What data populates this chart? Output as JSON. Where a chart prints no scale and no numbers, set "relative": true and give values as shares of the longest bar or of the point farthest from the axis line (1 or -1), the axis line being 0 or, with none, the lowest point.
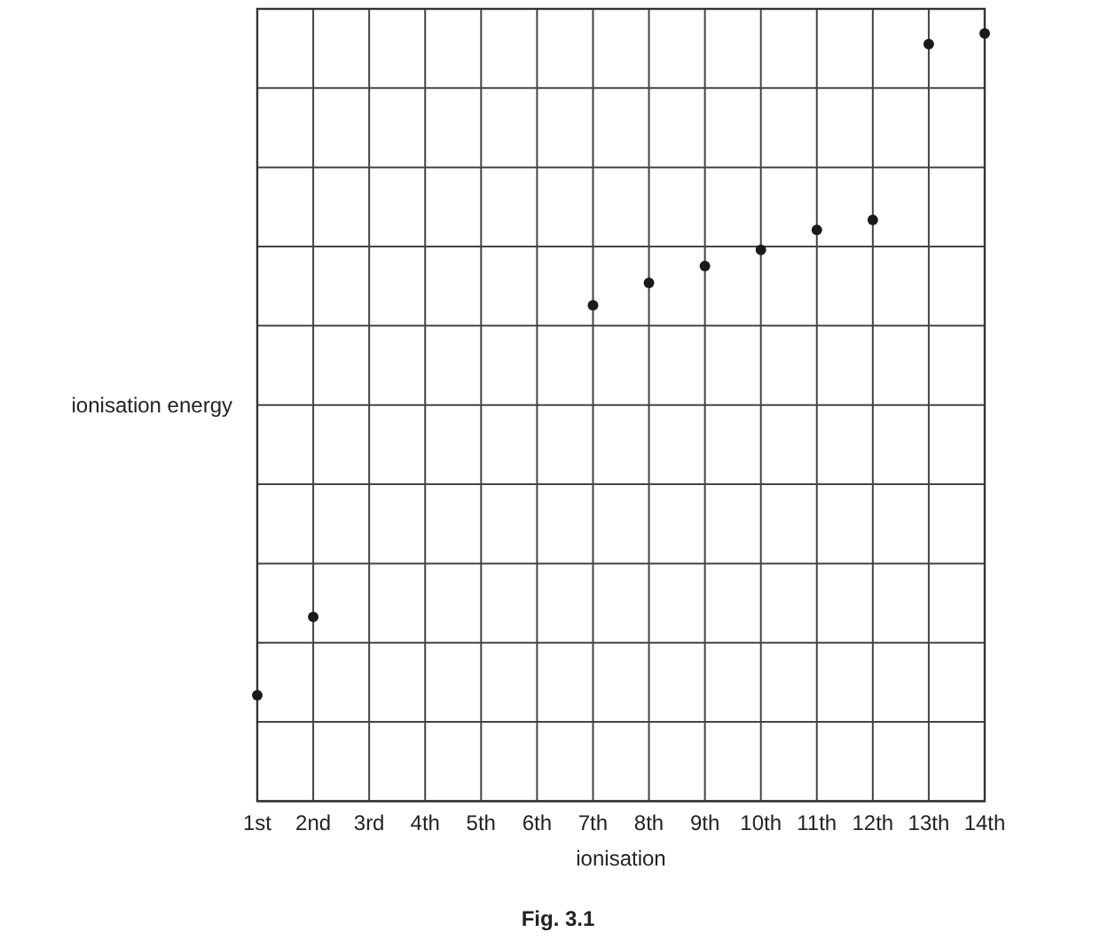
{
  "chart_data": {
    "type": "scatter",
    "relative": true,
    "xlabel": "ionisation",
    "ylabel": "ionisation energy",
    "annotations": [
      "Fig. 3.1"
    ],
    "categories": [
      "1st",
      "2nd",
      "3rd",
      "4th",
      "5th",
      "6th",
      "7th",
      "8th",
      "9th",
      "10th",
      "11th",
      "12th",
      "13th",
      "14th"
    ],
    "values": [
      0.138,
      0.24,
      null,
      null,
      null,
      null,
      0.646,
      0.675,
      0.697,
      0.718,
      0.744,
      0.757,
      0.986,
      1
    ],
    "color": "#1a1a1a",
    "marker": "circle",
    "grid": true
  }
}
